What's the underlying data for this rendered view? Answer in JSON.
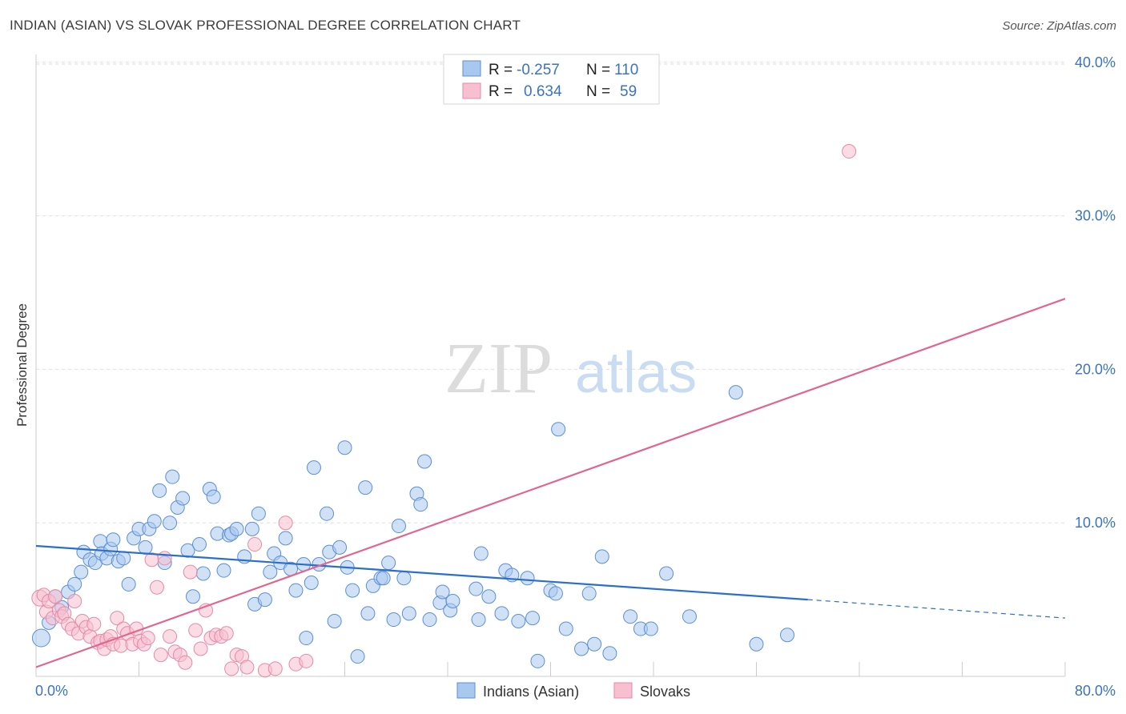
{
  "title": "INDIAN (ASIAN) VS SLOVAK PROFESSIONAL DEGREE CORRELATION CHART",
  "source": "Source: ZipAtlas.com",
  "watermark": {
    "zip": "ZIP",
    "atlas": "atlas"
  },
  "colors": {
    "blue_fill": "#a9c8ef",
    "blue_stroke": "#5b8fd6",
    "blue_line": "#2b6fcc",
    "pink_fill": "#f7bfd0",
    "pink_stroke": "#e58aa8",
    "pink_line": "#e0668f",
    "grid": "#dddddd",
    "tick_text": "#3a73c4"
  },
  "legend": {
    "rows": [
      {
        "r_label": "R =",
        "r_value": "-0.257",
        "n_label": "N =",
        "n_value": "110"
      },
      {
        "r_label": "R =",
        "r_value": "0.634",
        "n_label": "N =",
        "n_value": "59"
      }
    ]
  },
  "chart_data": {
    "type": "scatter",
    "title": "INDIAN (ASIAN) VS SLOVAK PROFESSIONAL DEGREE CORRELATION CHART",
    "ylabel": "Professional Degree",
    "xlabel": "",
    "xlim": [
      0,
      80
    ],
    "ylim": [
      0,
      42
    ],
    "y_ticks": [
      10,
      20,
      30,
      40
    ],
    "y_tick_labels": [
      "10.0%",
      "20.0%",
      "30.0%",
      "40.0%"
    ],
    "x_tick_labels": [
      "0.0%",
      "80.0%"
    ],
    "legend_entries": [
      "Indians (Asian)",
      "Slovaks"
    ],
    "series": [
      {
        "name": "Indians (Asian)",
        "r": -0.257,
        "n": 110,
        "trend": {
          "x0": 0,
          "y0": 8.5,
          "x1": 60,
          "y1": 5.0,
          "dash_to_x": 80,
          "dash_to_y": 3.8
        },
        "points": [
          [
            0.4,
            2.5
          ],
          [
            1,
            3.5
          ],
          [
            1.5,
            5.2
          ],
          [
            2,
            4.5
          ],
          [
            2.5,
            5.5
          ],
          [
            3,
            6
          ],
          [
            3.5,
            6.8
          ],
          [
            3.7,
            8.1
          ],
          [
            4.2,
            7.6
          ],
          [
            4.6,
            7.4
          ],
          [
            5,
            8.8
          ],
          [
            5.1,
            8
          ],
          [
            5.5,
            7.7
          ],
          [
            5.8,
            8.3
          ],
          [
            6,
            8.9
          ],
          [
            6.4,
            7.5
          ],
          [
            6.8,
            7.7
          ],
          [
            7.2,
            6
          ],
          [
            7.6,
            9
          ],
          [
            8,
            9.6
          ],
          [
            8.5,
            8.4
          ],
          [
            8.8,
            9.6
          ],
          [
            9.2,
            10.1
          ],
          [
            9.6,
            12.1
          ],
          [
            10,
            7.4
          ],
          [
            10.4,
            10
          ],
          [
            10.6,
            13
          ],
          [
            11,
            11
          ],
          [
            11.4,
            11.6
          ],
          [
            11.8,
            8.2
          ],
          [
            12.2,
            5.2
          ],
          [
            12.7,
            8.6
          ],
          [
            13,
            6.7
          ],
          [
            13.5,
            12.2
          ],
          [
            13.8,
            11.7
          ],
          [
            14.1,
            9.3
          ],
          [
            14.6,
            6.9
          ],
          [
            15,
            9.2
          ],
          [
            15.2,
            9.3
          ],
          [
            15.6,
            9.6
          ],
          [
            16.2,
            7.8
          ],
          [
            16.8,
            9.6
          ],
          [
            17,
            4.7
          ],
          [
            17.3,
            10.6
          ],
          [
            17.8,
            5
          ],
          [
            18.2,
            6.8
          ],
          [
            18.5,
            8
          ],
          [
            19,
            7.4
          ],
          [
            19.4,
            9
          ],
          [
            19.8,
            7
          ],
          [
            20.2,
            5.6
          ],
          [
            20.8,
            7.3
          ],
          [
            21,
            2.5
          ],
          [
            21.4,
            6.1
          ],
          [
            21.6,
            13.6
          ],
          [
            22,
            7.3
          ],
          [
            22.6,
            10.6
          ],
          [
            22.8,
            8.1
          ],
          [
            23.2,
            3.6
          ],
          [
            23.6,
            8.4
          ],
          [
            24,
            14.9
          ],
          [
            24.2,
            7.1
          ],
          [
            24.6,
            5.6
          ],
          [
            25,
            1.3
          ],
          [
            25.6,
            12.3
          ],
          [
            25.8,
            4.1
          ],
          [
            26.2,
            5.9
          ],
          [
            26.8,
            6.4
          ],
          [
            27,
            6.4
          ],
          [
            27.4,
            7.4
          ],
          [
            27.8,
            3.7
          ],
          [
            28.2,
            9.8
          ],
          [
            28.6,
            6.4
          ],
          [
            29,
            4.1
          ],
          [
            29.6,
            11.9
          ],
          [
            29.9,
            11.2
          ],
          [
            30.2,
            14
          ],
          [
            30.6,
            3.7
          ],
          [
            31.4,
            4.8
          ],
          [
            31.6,
            5.5
          ],
          [
            32.2,
            4.3
          ],
          [
            32.4,
            4.9
          ],
          [
            34.2,
            5.7
          ],
          [
            34.4,
            3.7
          ],
          [
            34.6,
            8
          ],
          [
            35.2,
            5.2
          ],
          [
            36.2,
            4.1
          ],
          [
            36.5,
            6.9
          ],
          [
            37,
            6.6
          ],
          [
            37.5,
            3.6
          ],
          [
            38.2,
            6.4
          ],
          [
            38.6,
            3.8
          ],
          [
            39,
            1
          ],
          [
            40,
            5.6
          ],
          [
            40.4,
            5.4
          ],
          [
            40.6,
            16.1
          ],
          [
            41.2,
            3.1
          ],
          [
            42.4,
            1.8
          ],
          [
            43,
            5.4
          ],
          [
            43.4,
            2.1
          ],
          [
            44,
            7.8
          ],
          [
            44.6,
            1.5
          ],
          [
            46.2,
            3.9
          ],
          [
            47,
            3.1
          ],
          [
            47.8,
            3.1
          ],
          [
            49,
            6.7
          ],
          [
            54.4,
            18.5
          ],
          [
            56,
            2.1
          ],
          [
            58.4,
            2.7
          ],
          [
            50.8,
            3.9
          ]
        ]
      },
      {
        "name": "Slovaks",
        "r": 0.634,
        "n": 59,
        "trend": {
          "x0": 0,
          "y0": 0.6,
          "x1": 80,
          "y1": 24.6
        },
        "points": [
          [
            0.3,
            5.1
          ],
          [
            0.6,
            5.3
          ],
          [
            0.8,
            4.2
          ],
          [
            1,
            4.9
          ],
          [
            1.3,
            3.8
          ],
          [
            1.5,
            5.2
          ],
          [
            1.8,
            4.3
          ],
          [
            2,
            3.9
          ],
          [
            2.2,
            4.1
          ],
          [
            2.5,
            3.4
          ],
          [
            2.8,
            3.1
          ],
          [
            3,
            4.9
          ],
          [
            3.3,
            2.8
          ],
          [
            3.6,
            3.6
          ],
          [
            3.9,
            3.2
          ],
          [
            4.2,
            2.6
          ],
          [
            4.5,
            3.4
          ],
          [
            4.8,
            2.2
          ],
          [
            5,
            2.3
          ],
          [
            5.3,
            1.8
          ],
          [
            5.5,
            2.4
          ],
          [
            5.8,
            2.6
          ],
          [
            6,
            2.1
          ],
          [
            6.3,
            3.8
          ],
          [
            6.6,
            2
          ],
          [
            6.8,
            3.1
          ],
          [
            7.1,
            2.8
          ],
          [
            7.5,
            2.1
          ],
          [
            7.8,
            3.1
          ],
          [
            8.1,
            2.3
          ],
          [
            8.4,
            2.1
          ],
          [
            8.7,
            2.5
          ],
          [
            9,
            7.6
          ],
          [
            9.4,
            5.8
          ],
          [
            9.7,
            1.4
          ],
          [
            10,
            7.7
          ],
          [
            10.4,
            2.6
          ],
          [
            10.8,
            1.6
          ],
          [
            11.2,
            1.4
          ],
          [
            11.6,
            0.9
          ],
          [
            12,
            6.8
          ],
          [
            12.4,
            3
          ],
          [
            12.8,
            1.8
          ],
          [
            13.2,
            4.3
          ],
          [
            13.6,
            2.5
          ],
          [
            14,
            2.7
          ],
          [
            14.4,
            2.6
          ],
          [
            14.8,
            2.8
          ],
          [
            15.2,
            0.5
          ],
          [
            15.6,
            1.4
          ],
          [
            16,
            1.3
          ],
          [
            16.4,
            0.6
          ],
          [
            17,
            8.6
          ],
          [
            17.8,
            0.4
          ],
          [
            18.6,
            0.5
          ],
          [
            19.4,
            10
          ],
          [
            20.2,
            0.8
          ],
          [
            21,
            1
          ],
          [
            63.2,
            34.2
          ]
        ]
      }
    ]
  },
  "bottom_legend": [
    {
      "label": "Indians (Asian)"
    },
    {
      "label": "Slovaks"
    }
  ]
}
